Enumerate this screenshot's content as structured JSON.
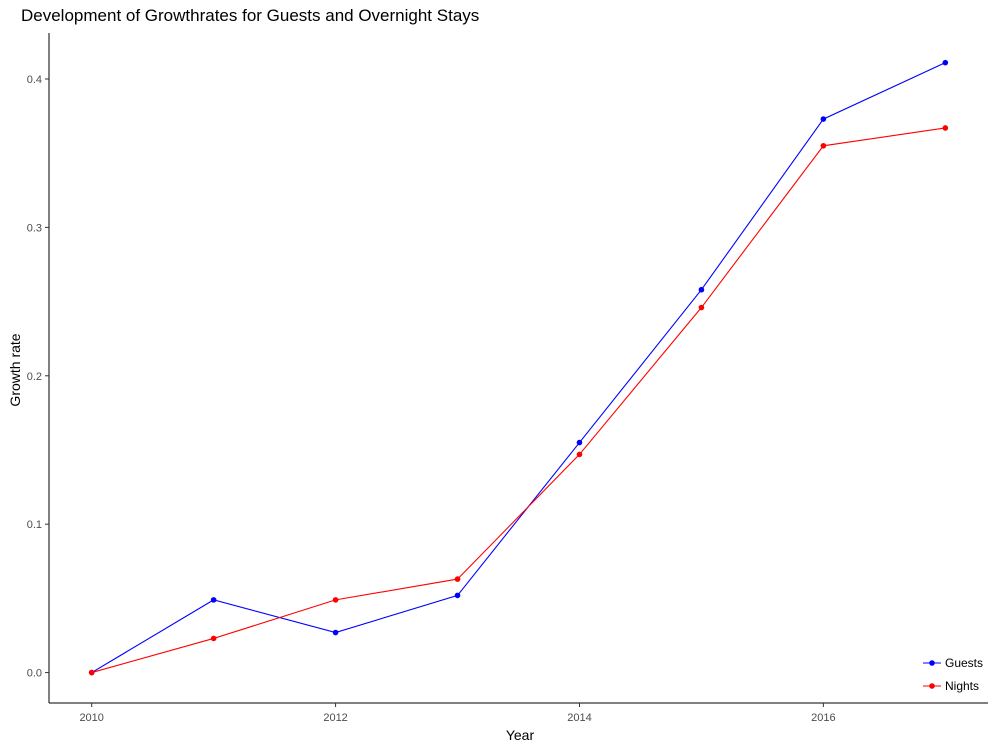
{
  "chart_data": {
    "type": "line",
    "title": "Development of Growthrates for Guests and Overnight Stays",
    "xlabel": "Year",
    "ylabel": "Growth rate",
    "x": [
      2010,
      2011,
      2012,
      2013,
      2014,
      2015,
      2016,
      2017
    ],
    "xlim": [
      2009.65,
      2017.35
    ],
    "ylim": [
      -0.0205,
      0.431
    ],
    "x_ticks": [
      2010,
      2012,
      2014,
      2016
    ],
    "x_tick_labels": [
      "2010",
      "2012",
      "2014",
      "2016"
    ],
    "y_ticks": [
      0.0,
      0.1,
      0.2,
      0.3,
      0.4
    ],
    "y_tick_labels": [
      "0.0",
      "0.1",
      "0.2",
      "0.3",
      "0.4"
    ],
    "grid": false,
    "legend_position": "bottom-right",
    "series": [
      {
        "name": "Guests",
        "color": "#0000ff",
        "values": [
          0.0,
          0.049,
          0.027,
          0.052,
          0.155,
          0.258,
          0.373,
          0.411
        ]
      },
      {
        "name": "Nights",
        "color": "#ff0000",
        "values": [
          0.0,
          0.023,
          0.049,
          0.063,
          0.147,
          0.246,
          0.355,
          0.367
        ]
      }
    ]
  }
}
